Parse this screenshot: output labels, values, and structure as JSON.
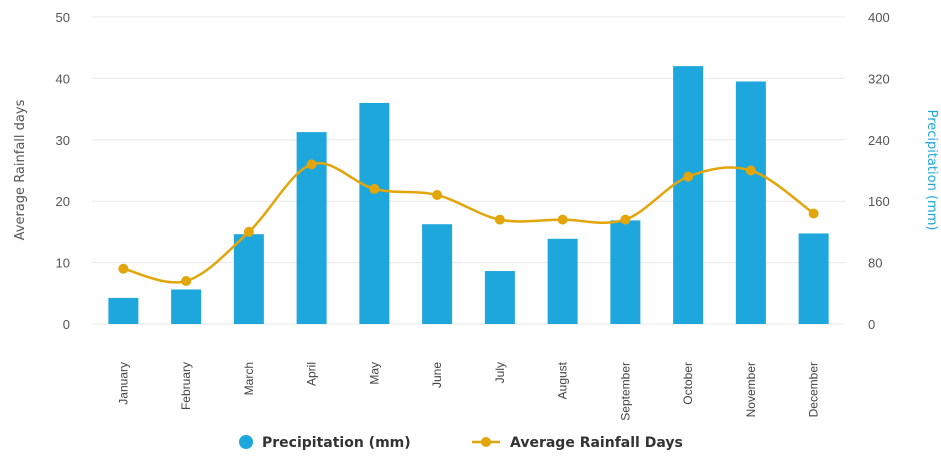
{
  "chart_data": {
    "type": "bar",
    "categories": [
      "January",
      "February",
      "March",
      "April",
      "May",
      "June",
      "July",
      "August",
      "September",
      "October",
      "November",
      "December"
    ],
    "series": [
      {
        "name": "Precipitation (mm)",
        "type": "bar",
        "axis": "right",
        "color": "#1ea7dd",
        "values": [
          34,
          45,
          117,
          250,
          288,
          130,
          69,
          111,
          135,
          336,
          316,
          118
        ]
      },
      {
        "name": "Average Rainfall Days",
        "type": "line",
        "axis": "left",
        "color": "#e2a50a",
        "values": [
          9,
          7,
          15,
          26,
          22,
          21,
          17,
          17,
          17,
          24,
          25,
          18
        ]
      }
    ],
    "ylabel_left": "Average Rainfall days",
    "ylabel_right": "Precipitation (mm)",
    "ylim_left": [
      0,
      50
    ],
    "ylim_right": [
      0,
      400
    ],
    "yticks_left": [
      "0",
      "10",
      "20",
      "30",
      "40",
      "50"
    ],
    "yticks_right": [
      "0",
      "80",
      "160",
      "240",
      "320",
      "400"
    ],
    "grid": true,
    "legend_position": "bottom"
  }
}
